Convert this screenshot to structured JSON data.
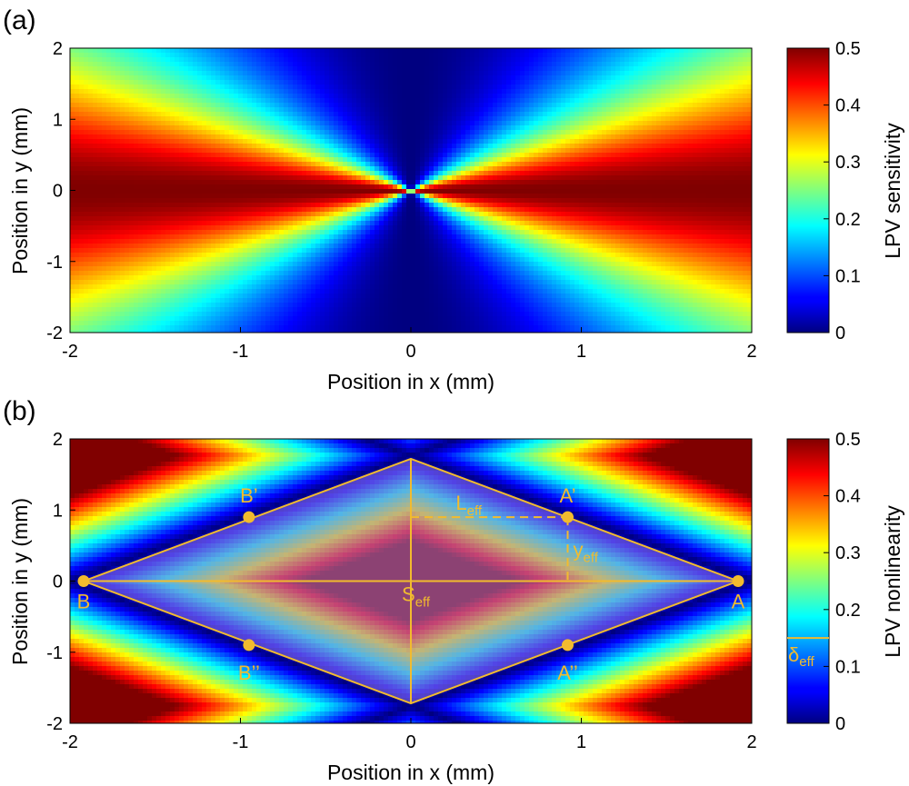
{
  "chart_data": [
    {
      "type": "heatmap",
      "panel_label": "(a)",
      "xlabel": "Position in x (mm)",
      "ylabel": "Position in y (mm)",
      "xlim": [
        -2,
        2
      ],
      "ylim": [
        -2,
        2
      ],
      "xticks": [
        "-2",
        "-1",
        "0",
        "1",
        "2"
      ],
      "yticks": [
        "-2",
        "-1",
        "0",
        "1",
        "2"
      ],
      "colorbar": {
        "label": "LPV sensitivity",
        "min": 0,
        "max": 0.5,
        "ticks": [
          "0",
          "0.1",
          "0.2",
          "0.3",
          "0.4",
          "0.5"
        ],
        "colormap": "jet"
      },
      "field": "0.5 * cos(atan2(y, x))^2 (max 0.5 along y=0, 0 along x=0, all directions converge at origin)"
    },
    {
      "type": "heatmap",
      "panel_label": "(b)",
      "xlabel": "Position in x (mm)",
      "ylabel": "Position in y (mm)",
      "xlim": [
        -2,
        2
      ],
      "ylim": [
        -2,
        2
      ],
      "xticks": [
        "-2",
        "-1",
        "0",
        "1",
        "2"
      ],
      "yticks": [
        "-2",
        "-1",
        "0",
        "1",
        "2"
      ],
      "colorbar": {
        "label": "LPV nonlinearity",
        "min": 0,
        "max": 0.5,
        "ticks": [
          "0",
          "0.1",
          "0.2",
          "0.3",
          "0.4",
          "0.5"
        ],
        "colormap": "jet",
        "threshold_value": 0.15,
        "threshold_label": "δ",
        "threshold_sub": "eff"
      },
      "overlay_color": "#f2bb2e",
      "points": [
        {
          "label": "B",
          "x": -1.92,
          "y": 0
        },
        {
          "label": "B’",
          "x": -0.95,
          "y": 0.9
        },
        {
          "label": "B’’",
          "x": -0.95,
          "y": -0.9
        },
        {
          "label": "A",
          "x": 1.92,
          "y": 0
        },
        {
          "label": "A’",
          "x": 0.92,
          "y": 0.9
        },
        {
          "label": "A’’",
          "x": 0.92,
          "y": -0.9
        }
      ],
      "region_vertices": [
        [
          -1.92,
          0
        ],
        [
          0,
          1.72
        ],
        [
          1.92,
          0
        ],
        [
          0,
          -1.72
        ]
      ],
      "annotations": [
        {
          "text": "L",
          "sub": "eff"
        },
        {
          "text": "y",
          "sub": "eff"
        },
        {
          "text": "S",
          "sub": "eff"
        }
      ]
    }
  ]
}
